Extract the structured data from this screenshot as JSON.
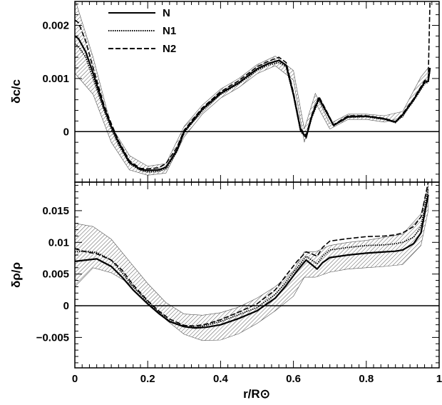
{
  "chart_data": [
    {
      "type": "line",
      "ylabel": "δc/c",
      "xlabel": "",
      "xlim": [
        0,
        1
      ],
      "ylim": [
        -0.00095,
        0.00245
      ],
      "yticks": [
        {
          "value": 0.0,
          "label": "0"
        },
        {
          "value": 0.001,
          "label": "0.001"
        },
        {
          "value": 0.002,
          "label": "0.002"
        }
      ],
      "zero_line": true,
      "legend": {
        "placement": "top-left",
        "entries": [
          "N",
          "N1",
          "N2"
        ]
      },
      "band": {
        "x": [
          0.0,
          0.05,
          0.1,
          0.15,
          0.2,
          0.25,
          0.3,
          0.35,
          0.4,
          0.45,
          0.5,
          0.55,
          0.6,
          0.63,
          0.66,
          0.7,
          0.75,
          0.8,
          0.85,
          0.9,
          0.95,
          0.97
        ],
        "upper": [
          0.0025,
          0.0014,
          0.0001,
          -0.00045,
          -0.00065,
          -0.0006,
          0.0001,
          0.0005,
          0.0008,
          0.001,
          0.00126,
          0.00142,
          0.00115,
          5e-05,
          0.00072,
          0.00015,
          0.00033,
          0.00033,
          0.0003,
          0.00038,
          0.00103,
          0.0012
        ],
        "lower": [
          0.0011,
          0.0007,
          -0.0002,
          -0.00072,
          -0.00082,
          -0.00078,
          -0.0001,
          0.00033,
          0.00063,
          0.00083,
          0.00109,
          0.00124,
          0.00097,
          -0.0002,
          0.00055,
          5e-05,
          0.00023,
          0.00023,
          0.00018,
          0.00027,
          0.00085,
          0.001
        ]
      },
      "series": [
        {
          "name": "N",
          "x": [
            0.0,
            0.01,
            0.03,
            0.05,
            0.08,
            0.1,
            0.12,
            0.15,
            0.18,
            0.2,
            0.23,
            0.25,
            0.28,
            0.3,
            0.35,
            0.4,
            0.45,
            0.5,
            0.53,
            0.56,
            0.58,
            0.6,
            0.62,
            0.635,
            0.65,
            0.67,
            0.69,
            0.71,
            0.75,
            0.8,
            0.85,
            0.88,
            0.9,
            0.93,
            0.96,
            0.97,
            0.975
          ],
          "y": [
            0.0018,
            0.00175,
            0.0015,
            0.0011,
            0.00045,
            0.0001,
            -0.0002,
            -0.00058,
            -0.00071,
            -0.00073,
            -0.00072,
            -0.00067,
            -0.00035,
            0.0,
            0.00042,
            0.00072,
            0.00092,
            0.00118,
            0.00128,
            0.00134,
            0.00125,
            0.0007,
            2e-05,
            -0.0001,
            0.00028,
            0.00063,
            0.00038,
            0.00012,
            0.00028,
            0.00029,
            0.00024,
            0.00018,
            0.00032,
            0.0006,
            0.00093,
            0.00095,
            0.0012
          ]
        },
        {
          "name": "N1",
          "x": [
            0.0,
            0.01,
            0.03,
            0.05,
            0.08,
            0.1,
            0.12,
            0.15,
            0.18,
            0.2,
            0.23,
            0.25,
            0.28,
            0.3,
            0.35,
            0.4,
            0.45,
            0.5,
            0.53,
            0.56,
            0.58,
            0.6,
            0.62,
            0.635,
            0.65,
            0.67,
            0.69,
            0.71,
            0.75,
            0.8,
            0.85,
            0.88,
            0.9,
            0.93,
            0.96,
            0.97,
            0.975
          ],
          "y": [
            0.00165,
            0.0016,
            0.0014,
            0.001,
            0.0004,
            5e-05,
            -0.00025,
            -0.0006,
            -0.00073,
            -0.00076,
            -0.00075,
            -0.0007,
            -0.00038,
            -2e-05,
            0.0004,
            0.0007,
            0.0009,
            0.00115,
            0.00125,
            0.0013,
            0.00122,
            0.00068,
            0.0,
            -0.00012,
            0.00026,
            0.0006,
            0.00036,
            0.00011,
            0.00027,
            0.00028,
            0.00023,
            0.00017,
            0.0003,
            0.00058,
            0.0009,
            0.00093,
            0.00118
          ]
        },
        {
          "name": "N2",
          "x": [
            0.0,
            0.01,
            0.03,
            0.05,
            0.08,
            0.1,
            0.12,
            0.15,
            0.18,
            0.2,
            0.23,
            0.25,
            0.28,
            0.3,
            0.35,
            0.4,
            0.45,
            0.5,
            0.53,
            0.56,
            0.58,
            0.6,
            0.62,
            0.635,
            0.65,
            0.67,
            0.69,
            0.71,
            0.75,
            0.8,
            0.85,
            0.88,
            0.9,
            0.93,
            0.96,
            0.97,
            0.975
          ],
          "y": [
            0.0021,
            0.00205,
            0.0017,
            0.0012,
            0.0005,
            0.00015,
            -0.00017,
            -0.00055,
            -0.00069,
            -0.0007,
            -0.00068,
            -0.0006,
            -0.0003,
            3e-05,
            0.00045,
            0.00075,
            0.00096,
            0.00122,
            0.00132,
            0.0014,
            0.0013,
            0.00074,
            5e-05,
            -6e-05,
            0.00031,
            0.00066,
            0.0004,
            0.00013,
            0.0003,
            0.0003,
            0.00025,
            0.00019,
            0.00034,
            0.00062,
            0.00096,
            0.001,
            0.0025
          ]
        }
      ]
    },
    {
      "type": "line",
      "ylabel": "δρ/ρ",
      "xlabel": "r/R⊙",
      "xlim": [
        0,
        1
      ],
      "ylim": [
        -0.0098,
        0.0195
      ],
      "yticks": [
        {
          "value": -0.005,
          "label": "−0.005"
        },
        {
          "value": 0.0,
          "label": "0"
        },
        {
          "value": 0.005,
          "label": "0.005"
        },
        {
          "value": 0.01,
          "label": "0.01"
        },
        {
          "value": 0.015,
          "label": "0.015"
        }
      ],
      "xticks": [
        {
          "value": 0.0,
          "label": "0"
        },
        {
          "value": 0.2,
          "label": "0.2"
        },
        {
          "value": 0.4,
          "label": "0.4"
        },
        {
          "value": 0.6,
          "label": "0.6"
        },
        {
          "value": 0.8,
          "label": "0.8"
        },
        {
          "value": 1.0,
          "label": "1"
        }
      ],
      "zero_line": true,
      "band": {
        "x": [
          0.0,
          0.05,
          0.1,
          0.15,
          0.2,
          0.25,
          0.3,
          0.35,
          0.4,
          0.45,
          0.5,
          0.55,
          0.6,
          0.63,
          0.66,
          0.7,
          0.75,
          0.8,
          0.85,
          0.9,
          0.95,
          0.97
        ],
        "upper": [
          0.013,
          0.0125,
          0.0105,
          0.007,
          0.0035,
          0.0005,
          -0.0013,
          -0.0015,
          -0.0011,
          -0.0002,
          0.0012,
          0.003,
          0.0055,
          0.0085,
          0.0085,
          0.0095,
          0.01,
          0.0103,
          0.0108,
          0.0113,
          0.0145,
          0.019
        ],
        "lower": [
          0.003,
          0.006,
          0.0052,
          0.0035,
          0.0008,
          -0.0022,
          -0.0045,
          -0.0055,
          -0.0054,
          -0.0044,
          -0.0028,
          -0.0008,
          0.0015,
          0.0045,
          0.0045,
          0.0053,
          0.0058,
          0.006,
          0.0062,
          0.0065,
          0.0095,
          0.015
        ]
      },
      "series": [
        {
          "name": "N",
          "x": [
            0.0,
            0.03,
            0.06,
            0.1,
            0.13,
            0.16,
            0.2,
            0.23,
            0.26,
            0.3,
            0.33,
            0.36,
            0.4,
            0.45,
            0.5,
            0.55,
            0.58,
            0.61,
            0.635,
            0.65,
            0.665,
            0.68,
            0.7,
            0.75,
            0.8,
            0.85,
            0.88,
            0.9,
            0.93,
            0.95,
            0.97
          ],
          "y": [
            0.007,
            0.0072,
            0.0074,
            0.0062,
            0.0045,
            0.0025,
            0.0003,
            -0.0012,
            -0.0025,
            -0.0033,
            -0.0035,
            -0.0034,
            -0.003,
            -0.002,
            -0.0008,
            0.0012,
            0.0032,
            0.0055,
            0.0072,
            0.0065,
            0.0058,
            0.0068,
            0.0076,
            0.008,
            0.0083,
            0.0085,
            0.0086,
            0.0088,
            0.0098,
            0.0115,
            0.0175
          ]
        },
        {
          "name": "N1",
          "x": [
            0.0,
            0.03,
            0.06,
            0.1,
            0.13,
            0.16,
            0.2,
            0.23,
            0.26,
            0.3,
            0.33,
            0.36,
            0.4,
            0.45,
            0.5,
            0.55,
            0.58,
            0.61,
            0.635,
            0.65,
            0.665,
            0.68,
            0.7,
            0.75,
            0.8,
            0.85,
            0.88,
            0.9,
            0.93,
            0.95,
            0.97
          ],
          "y": [
            0.0085,
            0.0086,
            0.0084,
            0.0072,
            0.0052,
            0.003,
            0.0006,
            -0.001,
            -0.0024,
            -0.0033,
            -0.0034,
            -0.0031,
            -0.0025,
            -0.0014,
            -0.0003,
            0.0018,
            0.0038,
            0.006,
            0.0078,
            0.0072,
            0.0066,
            0.0078,
            0.0088,
            0.0092,
            0.0095,
            0.0096,
            0.0098,
            0.01,
            0.0108,
            0.0125,
            0.0185
          ]
        },
        {
          "name": "N2",
          "x": [
            0.0,
            0.03,
            0.06,
            0.1,
            0.13,
            0.16,
            0.2,
            0.23,
            0.26,
            0.3,
            0.33,
            0.36,
            0.4,
            0.45,
            0.5,
            0.55,
            0.58,
            0.61,
            0.635,
            0.65,
            0.665,
            0.68,
            0.7,
            0.75,
            0.8,
            0.85,
            0.88,
            0.9,
            0.93,
            0.95,
            0.97
          ],
          "y": [
            0.009,
            0.0085,
            0.0082,
            0.0072,
            0.0056,
            0.0033,
            0.0008,
            -0.0008,
            -0.0021,
            -0.0031,
            -0.0032,
            -0.0029,
            -0.0022,
            -0.001,
            0.0003,
            0.0025,
            0.0048,
            0.007,
            0.0085,
            0.0082,
            0.0078,
            0.0092,
            0.0102,
            0.0106,
            0.0109,
            0.011,
            0.0112,
            0.0115,
            0.0125,
            0.014,
            0.0195
          ]
        }
      ]
    }
  ]
}
